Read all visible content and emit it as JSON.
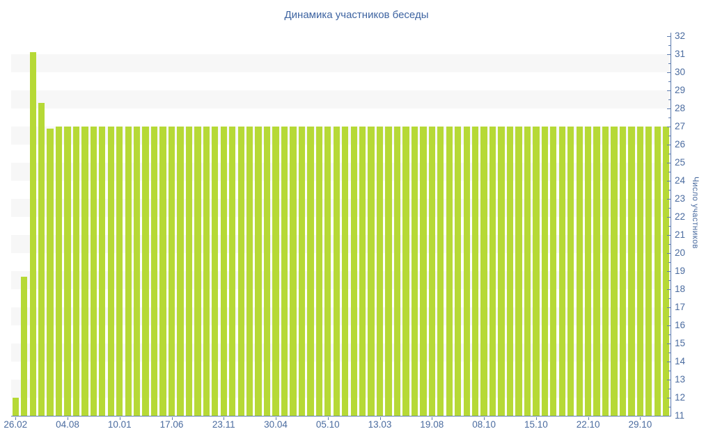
{
  "chart_data": {
    "type": "bar",
    "title": "Динамика участников беседы",
    "ylabel": "Число участников",
    "xlabel": "",
    "ylim": [
      11,
      32
    ],
    "y_ticks": [
      11,
      12,
      13,
      14,
      15,
      16,
      17,
      18,
      19,
      20,
      21,
      22,
      23,
      24,
      25,
      26,
      27,
      28,
      29,
      30,
      31,
      32
    ],
    "y_minor_tick_step": 0.5,
    "grid": "alternating horizontal bands (gray on intervals 12-13, 14-15, 16-17, 18-19, 20-21, 22-23, 24-25, 26-27, 28-29, 30-31)",
    "legend_position": "none",
    "axis_position": "right",
    "x_tick_labels": [
      "26.02",
      "04.08",
      "10.01",
      "17.06",
      "23.11",
      "30.04",
      "05.10",
      "13.03",
      "19.08",
      "08.10",
      "15.10",
      "22.10",
      "29.10"
    ],
    "x_label_every_n_bars": 6,
    "bar_count": 76,
    "values": [
      12,
      18.7,
      31.1,
      28.3,
      26.9,
      27,
      27,
      27,
      27,
      27,
      27,
      27,
      27,
      27,
      27,
      27,
      27,
      27,
      27,
      27,
      27,
      27,
      27,
      27,
      27,
      27,
      27,
      27,
      27,
      27,
      27,
      27,
      27,
      27,
      27,
      27,
      27,
      27,
      27,
      27,
      27,
      27,
      27,
      27,
      27,
      27,
      27,
      27,
      27,
      27,
      27,
      27,
      27,
      27,
      27,
      27,
      27,
      27,
      27,
      27,
      27,
      27,
      27,
      27,
      27,
      27,
      27,
      27,
      27,
      27,
      27,
      27,
      27,
      27,
      27,
      27
    ]
  },
  "colors": {
    "bar": "#b6d936",
    "band": "#f7f7f7",
    "axis": "#5b7aad",
    "text": "#4a6b9f",
    "title": "#3e64a1"
  }
}
